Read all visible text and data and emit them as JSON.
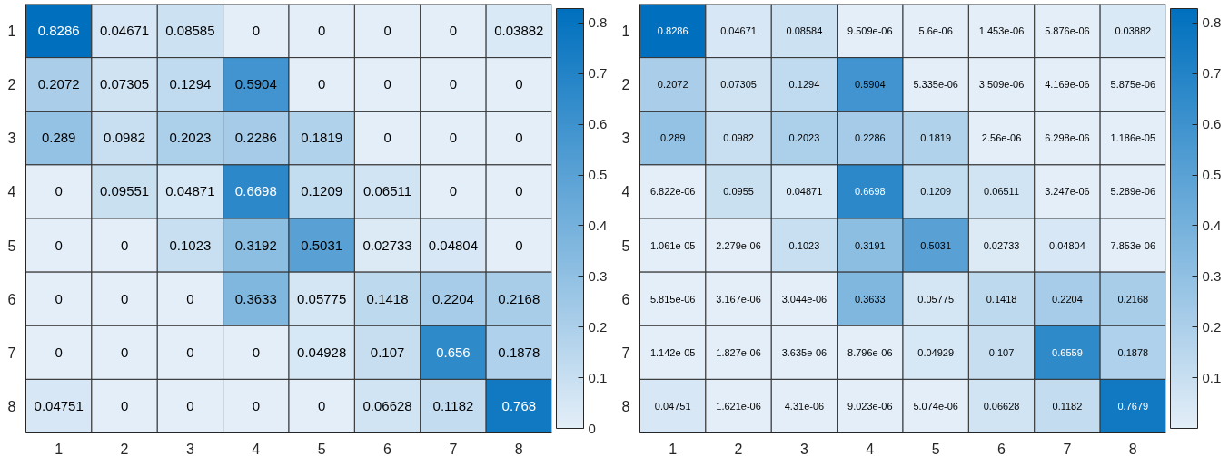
{
  "chart_data": [
    {
      "type": "heatmap",
      "categories": [
        "1",
        "2",
        "3",
        "4",
        "5",
        "6",
        "7",
        "8"
      ],
      "y_categories": [
        "1",
        "2",
        "3",
        "4",
        "5",
        "6",
        "7",
        "8"
      ],
      "cells": [
        [
          0.8286,
          0.04671,
          0.08585,
          0,
          0,
          0,
          0,
          0.03882
        ],
        [
          0.2072,
          0.07305,
          0.1294,
          0.5904,
          0,
          0,
          0,
          0
        ],
        [
          0.289,
          0.0982,
          0.2023,
          0.2286,
          0.1819,
          0,
          0,
          0
        ],
        [
          0,
          0.09551,
          0.04871,
          0.6698,
          0.1209,
          0.06511,
          0,
          0
        ],
        [
          0,
          0,
          0.1023,
          0.3192,
          0.5031,
          0.02733,
          0.04804,
          0
        ],
        [
          0,
          0,
          0,
          0.3633,
          0.05775,
          0.1418,
          0.2204,
          0.2168
        ],
        [
          0,
          0,
          0,
          0,
          0.04928,
          0.107,
          0.656,
          0.1878
        ],
        [
          0.04751,
          0,
          0,
          0,
          0,
          0.06628,
          0.1182,
          0.768
        ]
      ],
      "data_labels": true,
      "colors": [
        "#e3eef8",
        "#0070be"
      ],
      "clim": [
        0,
        0.8286
      ],
      "cticks": [
        0,
        0.1,
        0.2,
        0.3,
        0.4,
        0.5,
        0.6,
        0.7,
        0.8
      ]
    },
    {
      "type": "heatmap",
      "categories": [
        "1",
        "2",
        "3",
        "4",
        "5",
        "6",
        "7",
        "8"
      ],
      "y_categories": [
        "1",
        "2",
        "3",
        "4",
        "5",
        "6",
        "7",
        "8"
      ],
      "cells": [
        [
          0.8286,
          0.04671,
          0.08584,
          9.509e-06,
          5.6e-06,
          1.453e-06,
          5.876e-06,
          0.03882
        ],
        [
          0.2072,
          0.07305,
          0.1294,
          0.5904,
          5.335e-06,
          3.509e-06,
          4.169e-06,
          5.875e-06
        ],
        [
          0.289,
          0.0982,
          0.2023,
          0.2286,
          0.1819,
          2.56e-06,
          6.298e-06,
          1.186e-05
        ],
        [
          6.822e-06,
          0.0955,
          0.04871,
          0.6698,
          0.1209,
          0.06511,
          3.247e-06,
          5.289e-06
        ],
        [
          1.061e-05,
          2.279e-06,
          0.1023,
          0.3191,
          0.5031,
          0.02733,
          0.04804,
          7.853e-06
        ],
        [
          5.815e-06,
          3.167e-06,
          3.044e-06,
          0.3633,
          0.05775,
          0.1418,
          0.2204,
          0.2168
        ],
        [
          1.142e-05,
          1.827e-06,
          3.635e-06,
          8.796e-06,
          0.04929,
          0.107,
          0.6559,
          0.1878
        ],
        [
          0.04751,
          1.621e-06,
          4.31e-06,
          9.023e-06,
          5.074e-06,
          0.06628,
          0.1182,
          0.7679
        ]
      ],
      "data_labels": true,
      "colors": [
        "#e3eef8",
        "#0070be"
      ],
      "clim": [
        1.453e-06,
        0.8286
      ],
      "cticks": [
        0.1,
        0.2,
        0.3,
        0.4,
        0.5,
        0.6,
        0.7,
        0.8
      ]
    }
  ]
}
